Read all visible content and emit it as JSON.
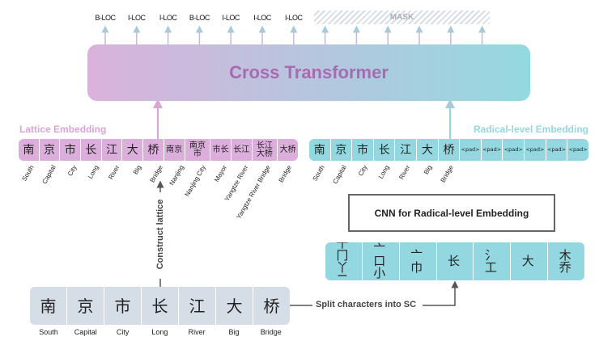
{
  "output_tags": [
    "B-LOC",
    "I-LOC",
    "I-LOC",
    "B-LOC",
    "I-LOC",
    "I-LOC",
    "I-LOC"
  ],
  "mask_label": "MASK",
  "transformer_label": "Cross Transformer",
  "lattice": {
    "title": "Lattice Embedding",
    "tokens": [
      "南",
      "京",
      "市",
      "长",
      "江",
      "大",
      "桥",
      "南京",
      "南京市",
      "市长",
      "长江",
      "长江大桥",
      "大桥"
    ],
    "glosses": [
      "South",
      "Capital",
      "City",
      "Long",
      "River",
      "Big",
      "Bridge",
      "Nanjing",
      "Nanjing City",
      "Mayor",
      "Yangtze River",
      "Yangtze River Bridge",
      "Bridge"
    ]
  },
  "radical": {
    "title": "Radical-level Embedding",
    "tokens": [
      "南",
      "京",
      "市",
      "长",
      "江",
      "大",
      "桥",
      "<pad>",
      "<pad>",
      "<pad>",
      "<pad>",
      "<pad>",
      "<pad>"
    ],
    "glosses": [
      "South",
      "Capital",
      "City",
      "Long",
      "River",
      "Big",
      "Bridge"
    ]
  },
  "cnn_label": "CNN for Radical-level Embedding",
  "radical_groups": [
    "十冂 丫二",
    "亠口 小",
    "亠巾",
    "长",
    "氵工",
    "大",
    "木乔"
  ],
  "characters": {
    "tokens": [
      "南",
      "京",
      "市",
      "长",
      "江",
      "大",
      "桥"
    ],
    "glosses": [
      "South",
      "Capital",
      "City",
      "Long",
      "River",
      "Big",
      "Bridge"
    ]
  },
  "construct_label": "Construct lattice",
  "split_label": "Split characters into SC",
  "colors": {
    "lattice": "#dcaedb",
    "radical": "#93d8e0",
    "chars": "#d5dde6",
    "title": "#a66cb0"
  }
}
